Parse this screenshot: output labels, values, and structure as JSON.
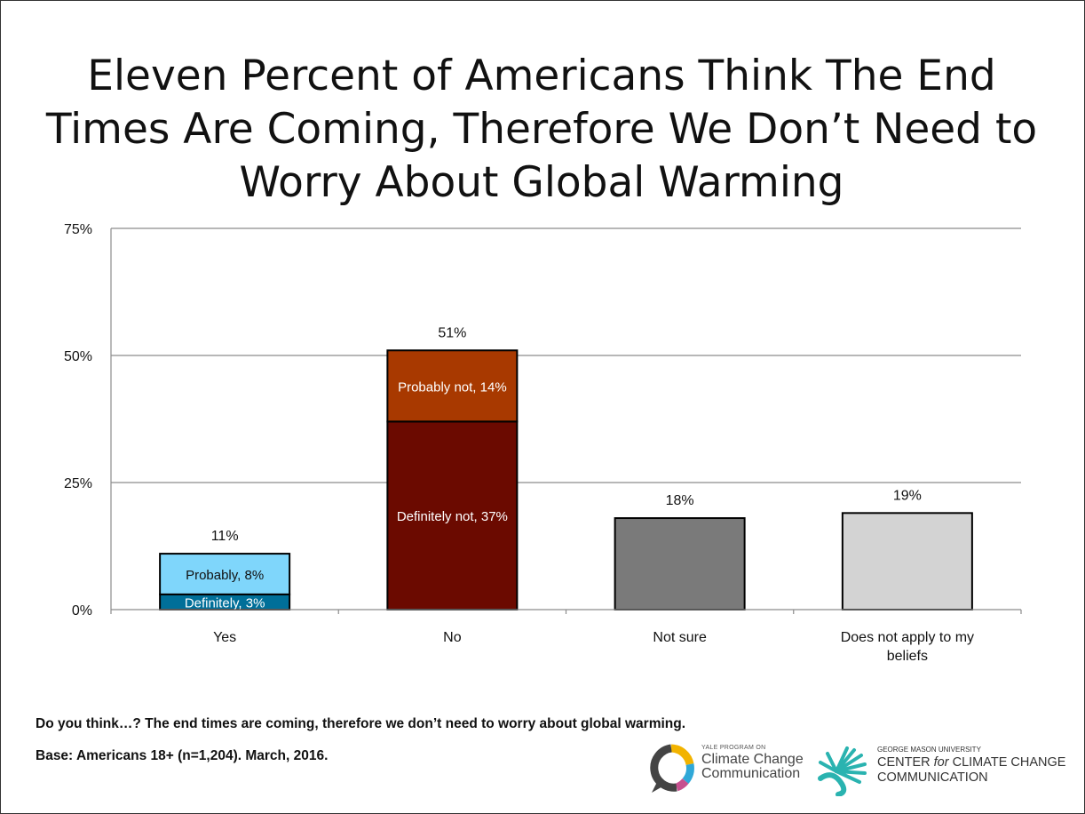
{
  "title": "Eleven Percent of Americans Think The End Times Are Coming, Therefore We Don’t Need to Worry About Global Warming",
  "footnote_question": "Do you think…? The end times are coming, therefore we don’t need to worry about global warming.",
  "footnote_base": "Base: Americans 18+ (n=1,204). March, 2016.",
  "logos": {
    "yale_small": "YALE PROGRAM ON",
    "yale_line1": "Climate Change",
    "yale_line2": "Communication",
    "gmu_small": "GEORGE MASON UNIVERSITY",
    "gmu_line1_pre": "CENTER ",
    "gmu_line1_for": "for",
    "gmu_line1_post": " CLIMATE CHANGE",
    "gmu_line2": "COMMUNICATION"
  },
  "chart_data": {
    "type": "bar",
    "stacked": true,
    "categories": [
      "Yes",
      "No",
      "Not sure",
      "Does not apply to my beliefs"
    ],
    "category_label_lines": [
      [
        "Yes"
      ],
      [
        "No"
      ],
      [
        "Not sure"
      ],
      [
        "Does not apply to my",
        "beliefs"
      ]
    ],
    "ylim": [
      0,
      75
    ],
    "yticks": [
      0,
      25,
      50,
      75
    ],
    "ytick_labels": [
      "0%",
      "25%",
      "50%",
      "75%"
    ],
    "grid": true,
    "bars": [
      {
        "category": "Yes",
        "total": 11,
        "total_label": "11%",
        "segments": [
          {
            "value": 3,
            "label": "Definitely, 3%",
            "color": "#006f99",
            "text_color": "#ffffff"
          },
          {
            "value": 8,
            "label": "Probably, 8%",
            "color": "#7fd6fb",
            "text_color": "#111111"
          }
        ]
      },
      {
        "category": "No",
        "total": 51,
        "total_label": "51%",
        "segments": [
          {
            "value": 37,
            "label": "Definitely not, 37%",
            "color": "#6b0a00",
            "text_color": "#ffffff"
          },
          {
            "value": 14,
            "label": "Probably not, 14%",
            "color": "#a83900",
            "text_color": "#ffffff"
          }
        ]
      },
      {
        "category": "Not sure",
        "total": 18,
        "total_label": "18%",
        "segments": [
          {
            "value": 18,
            "label": "",
            "color": "#7a7a7a",
            "text_color": "#ffffff"
          }
        ]
      },
      {
        "category": "Does not apply to my beliefs",
        "total": 19,
        "total_label": "19%",
        "segments": [
          {
            "value": 19,
            "label": "",
            "color": "#d3d3d3",
            "text_color": "#111111"
          }
        ]
      }
    ]
  }
}
